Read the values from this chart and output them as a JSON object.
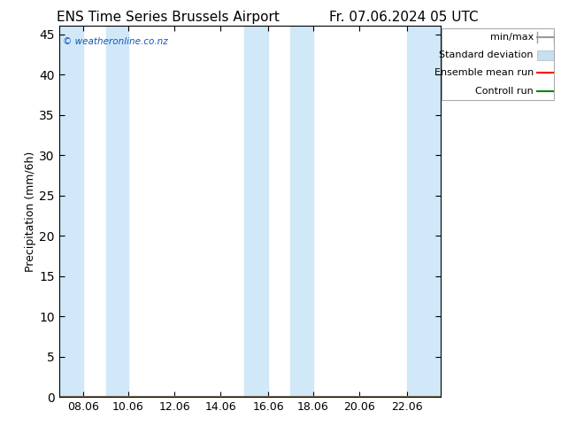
{
  "title_left": "ENS Time Series Brussels Airport",
  "title_right": "Fr. 07.06.2024 05 UTC",
  "ylabel": "Precipitation (mm/6h)",
  "ylim": [
    0,
    46
  ],
  "yticks": [
    0,
    5,
    10,
    15,
    20,
    25,
    30,
    35,
    40,
    45
  ],
  "plot_bg_color": "#ffffff",
  "band_color": "#d0e8f8",
  "band_positions": [
    [
      7.0,
      8.06
    ],
    [
      9.06,
      10.0
    ],
    [
      15.0,
      16.06
    ],
    [
      17.0,
      18.0
    ],
    [
      22.06,
      23.5
    ]
  ],
  "xtick_labels": [
    "08.06",
    "10.06",
    "12.06",
    "14.06",
    "16.06",
    "18.06",
    "20.06",
    "22.06"
  ],
  "xtick_positions": [
    8.06,
    10.0,
    12.0,
    14.0,
    16.06,
    18.0,
    20.0,
    22.06
  ],
  "xlim": [
    7.0,
    23.5
  ],
  "watermark": "© weatheronline.co.nz",
  "legend_items": [
    {
      "label": "min/max",
      "type": "ibeam",
      "color": "#999999"
    },
    {
      "label": "Standard deviation",
      "type": "rect",
      "color": "#c8dff0"
    },
    {
      "label": "Ensemble mean run",
      "type": "line",
      "color": "#ff0000"
    },
    {
      "label": "Controll run",
      "type": "line",
      "color": "#008800"
    }
  ],
  "title_fontsize": 11,
  "axis_fontsize": 9,
  "legend_fontsize": 8
}
